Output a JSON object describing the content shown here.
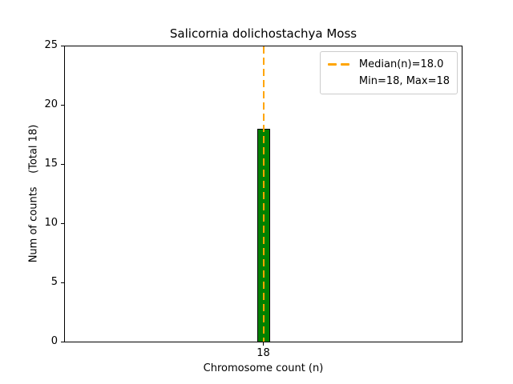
{
  "title": "Salicornia dolichostachya Moss",
  "chart_data": {
    "type": "bar",
    "title": "Salicornia dolichostachya Moss",
    "categories": [
      "18"
    ],
    "values": [
      18
    ],
    "xlabel": "Chromosome count (n)",
    "ylabel": "Num of counts    (Total 18)",
    "ylim": [
      0,
      25
    ],
    "yticks": [
      "0",
      "5",
      "10",
      "15",
      "20",
      "25"
    ],
    "xticks": [
      "18"
    ],
    "total_counts": 18,
    "bar_color": "#008000",
    "bar_edge_color": "#000000",
    "grid": false,
    "median_line": {
      "value": 18.0,
      "orientation": "vertical",
      "style": "dashed",
      "color": "#FFA500"
    },
    "legend": {
      "position": "upper right",
      "entries": [
        {
          "label": "Median(n)=18.0",
          "handle": "orange-dashed-line"
        },
        {
          "label": "Min=18, Max=18",
          "handle": "none"
        }
      ]
    }
  },
  "axis": {
    "yticks": [
      "25",
      "20",
      "15",
      "10",
      "5",
      "0"
    ],
    "xtick": "18"
  },
  "legend": {
    "line1": "Median(n)=18.0",
    "line2": "Min=18, Max=18"
  },
  "colors": {
    "bar": "#008000",
    "bar_edge": "#000000",
    "median_line": "#FFA500",
    "spine": "#000000",
    "background": "#ffffff"
  }
}
